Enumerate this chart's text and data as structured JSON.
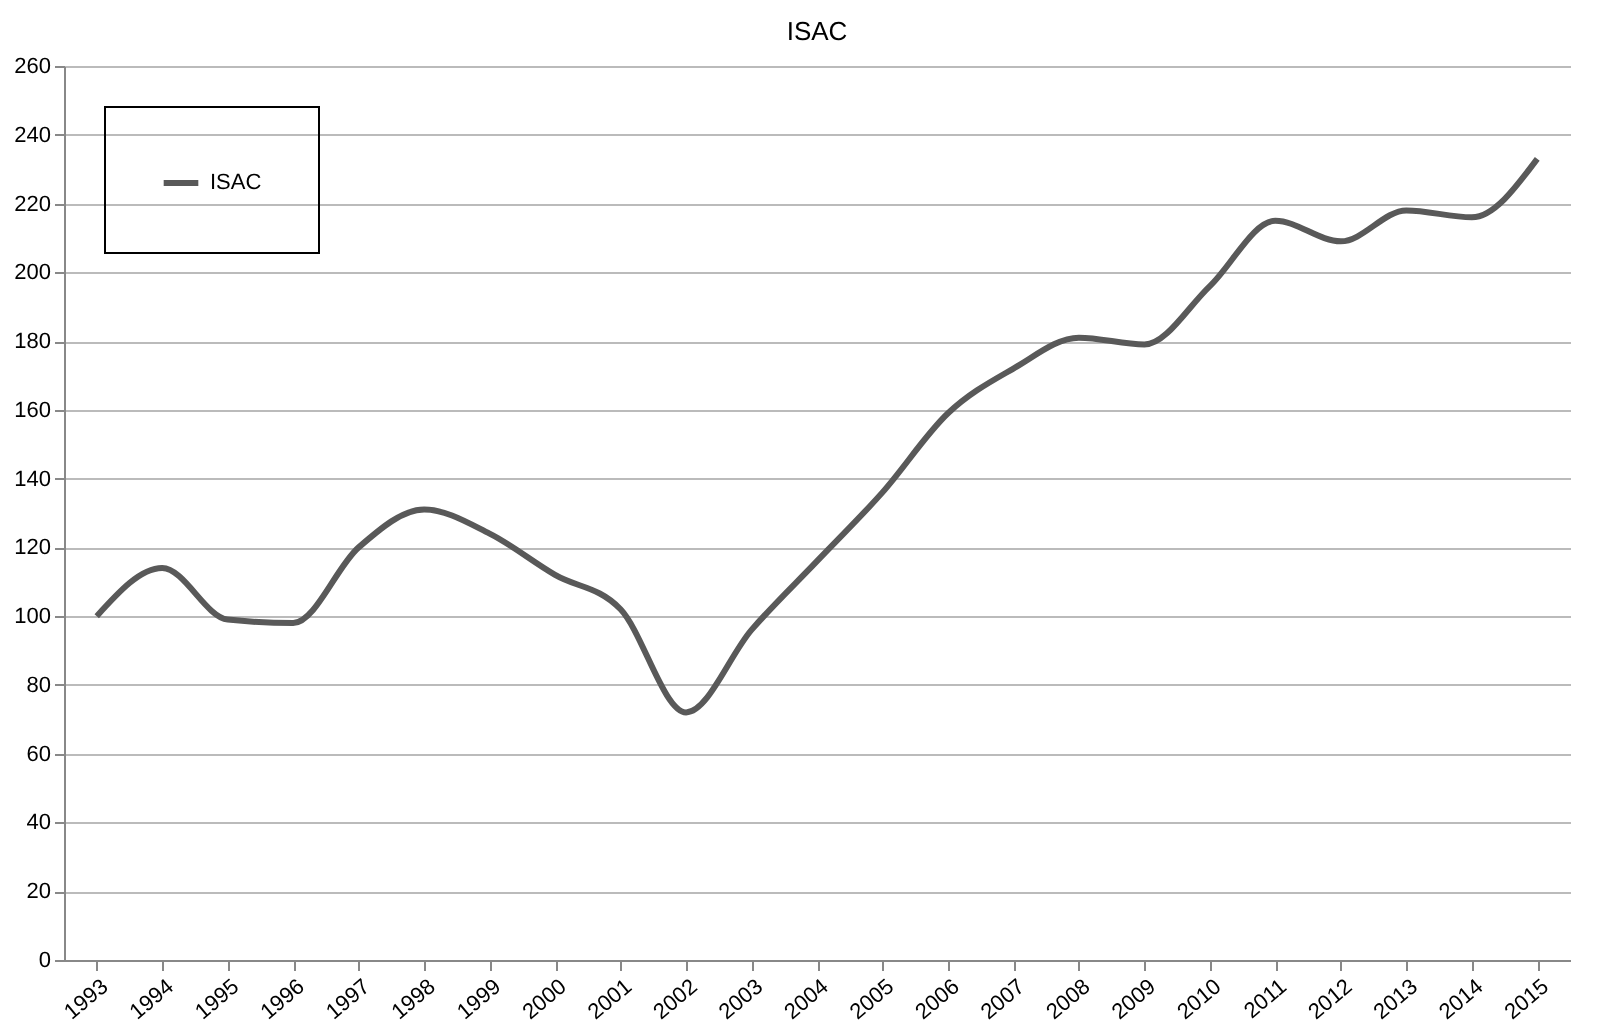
{
  "chart_data": {
    "type": "line",
    "title": "ISAC",
    "categories": [
      "1993",
      "1994",
      "1995",
      "1996",
      "1997",
      "1998",
      "1999",
      "2000",
      "2001",
      "2002",
      "2003",
      "2004",
      "2005",
      "2006",
      "2007",
      "2008",
      "2009",
      "2010",
      "2011",
      "2012",
      "2013",
      "2014",
      "2015"
    ],
    "series": [
      {
        "name": "ISAC",
        "color": "#595959",
        "values": [
          100,
          114,
          99,
          98,
          120,
          131,
          124,
          112,
          102,
          72,
          96,
          116,
          136,
          159,
          172,
          181,
          179,
          196,
          215,
          209,
          218,
          216,
          233
        ]
      }
    ],
    "ylim": [
      0,
      260
    ],
    "yticks": [
      0,
      20,
      40,
      60,
      80,
      100,
      120,
      140,
      160,
      180,
      200,
      220,
      240,
      260
    ],
    "grid": "y",
    "legend": "top left",
    "line_style": "solid",
    "marker": "none"
  }
}
